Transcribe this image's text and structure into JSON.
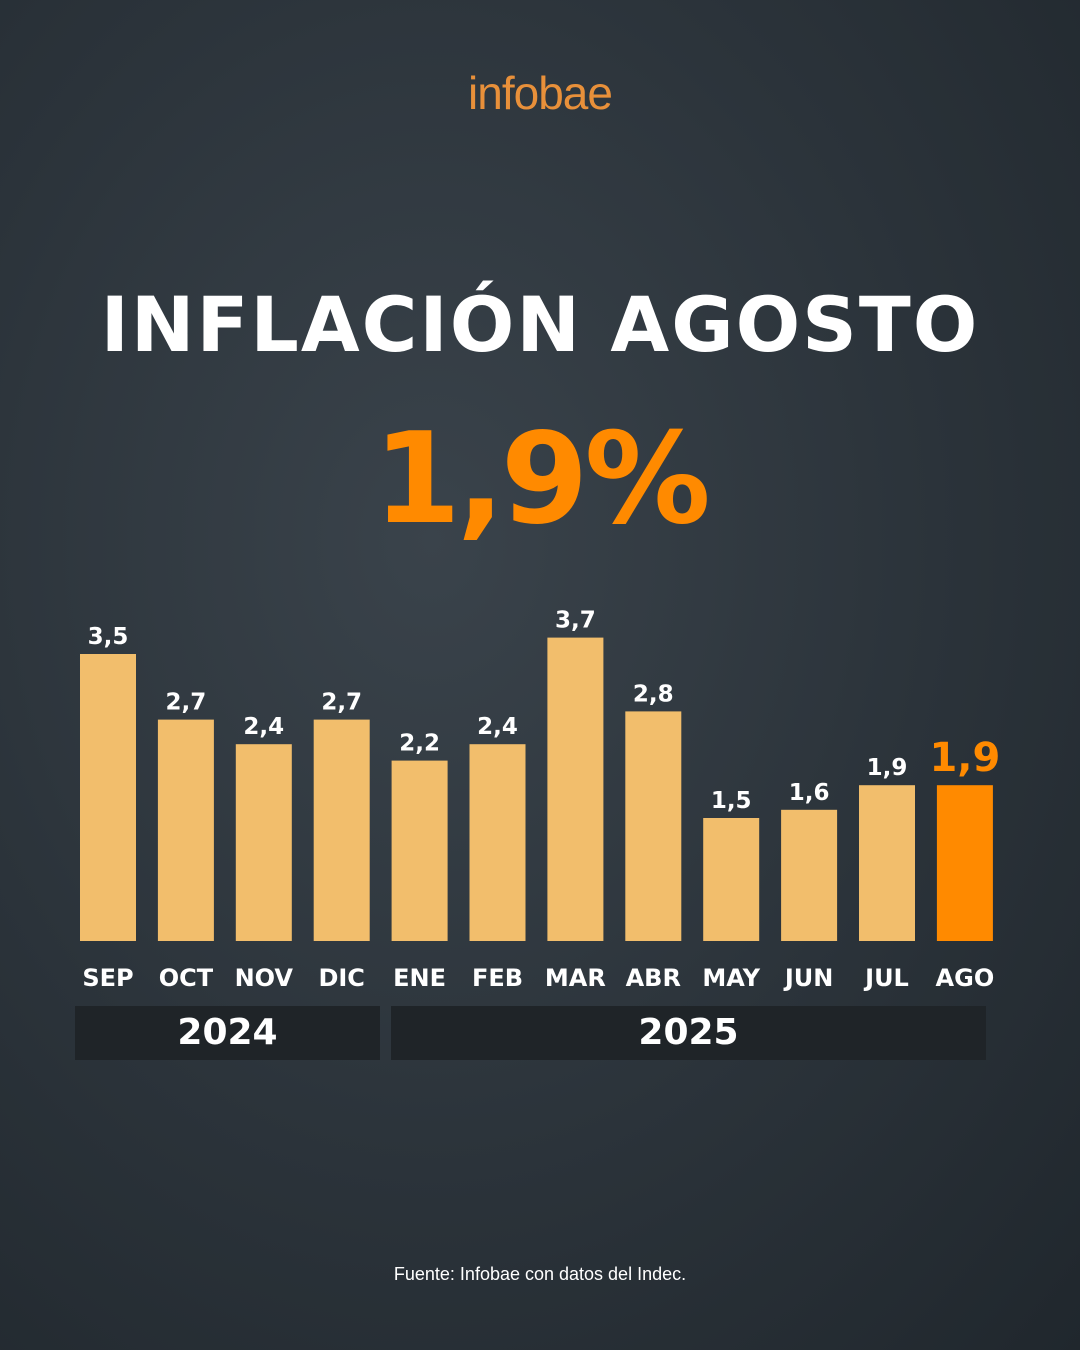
{
  "logo": "infobae",
  "title": "INFLACIÓN AGOSTO",
  "headline_value": "1,9%",
  "chart_data": {
    "type": "bar",
    "categories": [
      "SEP",
      "OCT",
      "NOV",
      "DIC",
      "ENE",
      "FEB",
      "MAR",
      "ABR",
      "MAY",
      "JUN",
      "JUL",
      "AGO"
    ],
    "values": [
      3.5,
      2.7,
      2.4,
      2.7,
      2.2,
      2.4,
      3.7,
      2.8,
      1.5,
      1.6,
      1.9,
      1.9
    ],
    "data_labels": [
      "3,5",
      "2,7",
      "2,4",
      "2,7",
      "2,2",
      "2,4",
      "3,7",
      "2,8",
      "1,5",
      "1,6",
      "1,9",
      "1,9"
    ],
    "highlight_index": 11,
    "year_groups": [
      {
        "label": "2024",
        "months": [
          "SEP",
          "OCT",
          "NOV",
          "DIC"
        ]
      },
      {
        "label": "2025",
        "months": [
          "ENE",
          "FEB",
          "MAR",
          "ABR",
          "MAY",
          "JUN",
          "JUL",
          "AGO"
        ]
      }
    ],
    "ylim": [
      0,
      4
    ],
    "grid": false,
    "colors": {
      "bar": "#f2be6c",
      "highlight": "#ff8a00",
      "label": "#ffffff"
    }
  },
  "source": "Fuente: Infobae con datos del Indec."
}
